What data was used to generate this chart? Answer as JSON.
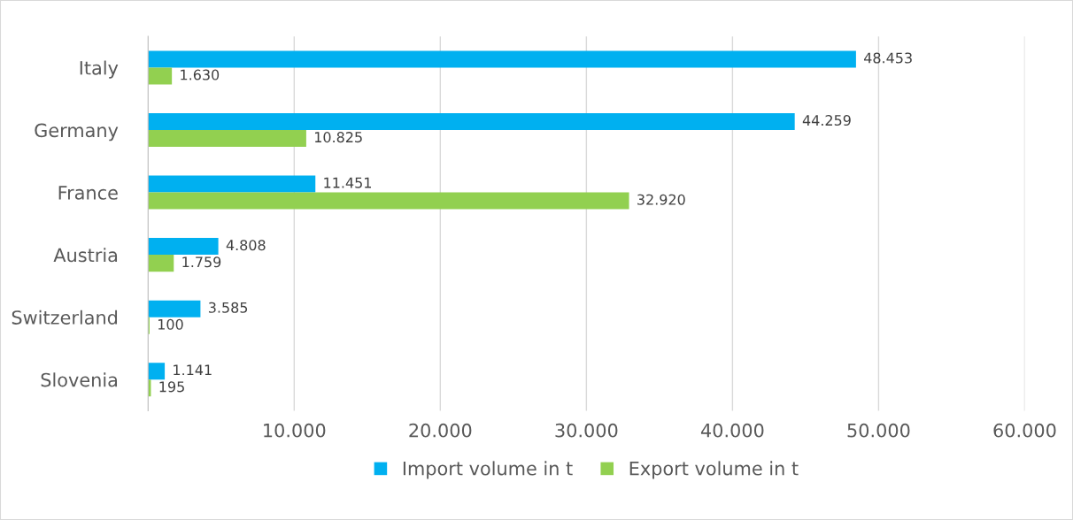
{
  "chart_data": {
    "type": "bar",
    "orientation": "horizontal",
    "categories": [
      "Italy",
      "Germany",
      "France",
      "Austria",
      "Switzerland",
      "Slovenia"
    ],
    "series": [
      {
        "name": "Import volume in t",
        "color": "#00b0f0",
        "values": [
          48453,
          44259,
          11451,
          4808,
          3585,
          1141
        ],
        "value_labels": [
          "48.453",
          "44.259",
          "11.451",
          "4.808",
          "3.585",
          "1.141"
        ]
      },
      {
        "name": "Export volume in t",
        "color": "#92d050",
        "values": [
          1630,
          10825,
          32920,
          1759,
          100,
          195
        ],
        "value_labels": [
          "1.630",
          "10.825",
          "32.920",
          "1.759",
          "100",
          "195"
        ]
      }
    ],
    "xlim": [
      0,
      60000
    ],
    "xticks": [
      {
        "value": 0,
        "label": null
      },
      {
        "value": 10000,
        "label": "10.000"
      },
      {
        "value": 20000,
        "label": "20.000"
      },
      {
        "value": 30000,
        "label": "30.000"
      },
      {
        "value": 40000,
        "label": "40.000"
      },
      {
        "value": 50000,
        "label": "50.000"
      },
      {
        "value": 60000,
        "label": "60.000"
      }
    ],
    "grid": "x",
    "legend": "bottom"
  }
}
